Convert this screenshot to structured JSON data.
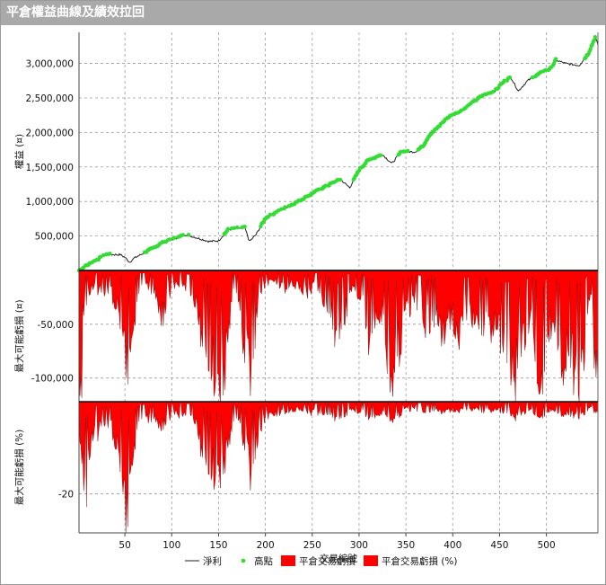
{
  "window": {
    "title": "平倉權益曲線及績效拉回"
  },
  "chart_data": {
    "type": "line",
    "x_label": "交易編號",
    "x_ticks": [
      50,
      100,
      150,
      200,
      250,
      300,
      350,
      400,
      450,
      500
    ],
    "x_range": [
      1,
      555
    ],
    "panels": [
      {
        "name": "equity",
        "ylabel": "權益 (¤)",
        "ylim": [
          0,
          3450000
        ],
        "y_ticks": [
          {
            "v": 500000,
            "label": "500,000"
          },
          {
            "v": 1000000,
            "label": "1,000,000"
          },
          {
            "v": 1500000,
            "label": "1,500,000"
          },
          {
            "v": 2000000,
            "label": "2,000,000"
          },
          {
            "v": 2500000,
            "label": "2,500,000"
          },
          {
            "v": 3000000,
            "label": "3,000,000"
          }
        ],
        "equity_anchors": [
          [
            1,
            0
          ],
          [
            10,
            80000
          ],
          [
            30,
            230000
          ],
          [
            45,
            230000
          ],
          [
            50,
            190000
          ],
          [
            55,
            120000
          ],
          [
            60,
            180000
          ],
          [
            70,
            250000
          ],
          [
            90,
            400000
          ],
          [
            115,
            520000
          ],
          [
            125,
            480000
          ],
          [
            140,
            420000
          ],
          [
            150,
            430000
          ],
          [
            160,
            590000
          ],
          [
            170,
            610000
          ],
          [
            178,
            620000
          ],
          [
            183,
            420000
          ],
          [
            190,
            520000
          ],
          [
            200,
            760000
          ],
          [
            220,
            900000
          ],
          [
            235,
            1000000
          ],
          [
            260,
            1190000
          ],
          [
            280,
            1320000
          ],
          [
            290,
            1200000
          ],
          [
            300,
            1460000
          ],
          [
            310,
            1600000
          ],
          [
            325,
            1680000
          ],
          [
            335,
            1550000
          ],
          [
            345,
            1720000
          ],
          [
            360,
            1720000
          ],
          [
            368,
            1800000
          ],
          [
            375,
            1960000
          ],
          [
            380,
            2020000
          ],
          [
            395,
            2220000
          ],
          [
            410,
            2320000
          ],
          [
            430,
            2520000
          ],
          [
            445,
            2600000
          ],
          [
            455,
            2740000
          ],
          [
            462,
            2800000
          ],
          [
            470,
            2600000
          ],
          [
            480,
            2750000
          ],
          [
            495,
            2870000
          ],
          [
            505,
            2930000
          ],
          [
            510,
            3050000
          ],
          [
            520,
            3000000
          ],
          [
            535,
            2970000
          ],
          [
            545,
            3150000
          ],
          [
            552,
            3380000
          ],
          [
            555,
            3270000
          ]
        ],
        "series": [
          {
            "name": "淨利",
            "color": "#222222"
          },
          {
            "name": "高點",
            "color": "#33dd33"
          }
        ]
      },
      {
        "name": "drawdown",
        "ylabel": "最大可能虧損 (¤)",
        "ylim": [
          -122000,
          0
        ],
        "y_ticks": [
          {
            "v": -50000,
            "label": "-50,000"
          },
          {
            "v": -100000,
            "label": "-100,000"
          }
        ],
        "series_name": "平倉交易虧損",
        "color": "#ff0000",
        "spikes": [
          [
            5,
            -40
          ],
          [
            12,
            -22
          ],
          [
            20,
            -20
          ],
          [
            28,
            -25
          ],
          [
            33,
            -18
          ],
          [
            40,
            -35
          ],
          [
            45,
            -50
          ],
          [
            48,
            -62
          ],
          [
            50,
            -85
          ],
          [
            52,
            -100
          ],
          [
            54,
            -110
          ],
          [
            56,
            -90
          ],
          [
            58,
            -60
          ],
          [
            62,
            -40
          ],
          [
            68,
            -20
          ],
          [
            75,
            -18
          ],
          [
            82,
            -25
          ],
          [
            90,
            -50
          ],
          [
            95,
            -35
          ],
          [
            100,
            -20
          ],
          [
            110,
            -15
          ],
          [
            118,
            -25
          ],
          [
            125,
            -35
          ],
          [
            130,
            -60
          ],
          [
            135,
            -75
          ],
          [
            140,
            -95
          ],
          [
            145,
            -110
          ],
          [
            150,
            -122
          ],
          [
            155,
            -118
          ],
          [
            160,
            -80
          ],
          [
            165,
            -20
          ],
          [
            172,
            -40
          ],
          [
            180,
            -95
          ],
          [
            185,
            -110
          ],
          [
            188,
            -100
          ],
          [
            192,
            -25
          ],
          [
            200,
            -15
          ],
          [
            210,
            -10
          ],
          [
            220,
            -20
          ],
          [
            228,
            -12
          ],
          [
            235,
            -18
          ],
          [
            245,
            -25
          ],
          [
            255,
            -15
          ],
          [
            262,
            -30
          ],
          [
            270,
            -45
          ],
          [
            278,
            -88
          ],
          [
            282,
            -55
          ],
          [
            290,
            -30
          ],
          [
            295,
            -15
          ],
          [
            305,
            -40
          ],
          [
            310,
            -80
          ],
          [
            318,
            -45
          ],
          [
            325,
            -50
          ],
          [
            330,
            -85
          ],
          [
            335,
            -115
          ],
          [
            340,
            -90
          ],
          [
            345,
            -70
          ],
          [
            352,
            -40
          ],
          [
            358,
            -35
          ],
          [
            365,
            -30
          ],
          [
            372,
            -60
          ],
          [
            378,
            -48
          ],
          [
            385,
            -55
          ],
          [
            392,
            -70
          ],
          [
            398,
            -45
          ],
          [
            405,
            -65
          ],
          [
            412,
            -62
          ],
          [
            418,
            -40
          ],
          [
            425,
            -72
          ],
          [
            432,
            -55
          ],
          [
            440,
            -60
          ],
          [
            448,
            -68
          ],
          [
            455,
            -75
          ],
          [
            460,
            -110
          ],
          [
            465,
            -120
          ],
          [
            470,
            -100
          ],
          [
            475,
            -65
          ],
          [
            480,
            -70
          ],
          [
            485,
            -50
          ],
          [
            490,
            -92
          ],
          [
            495,
            -115
          ],
          [
            500,
            -70
          ],
          [
            508,
            -55
          ],
          [
            515,
            -85
          ],
          [
            520,
            -100
          ],
          [
            525,
            -80
          ],
          [
            530,
            -108
          ],
          [
            535,
            -115
          ],
          [
            540,
            -95
          ],
          [
            543,
            -45
          ],
          [
            548,
            -20
          ],
          [
            552,
            -110
          ],
          [
            555,
            -105
          ]
        ]
      },
      {
        "name": "drawdown_pct",
        "ylabel": "最大可能虧損 (%)",
        "ylim": [
          -28.5,
          0
        ],
        "y_ticks": [
          {
            "v": -20,
            "label": "-20"
          }
        ],
        "series_name": "平倉交易虧損 (%)",
        "color": "#ff0000",
        "spikes": [
          [
            2,
            -8
          ],
          [
            5,
            -14
          ],
          [
            8,
            -24
          ],
          [
            12,
            -12
          ],
          [
            18,
            -9
          ],
          [
            25,
            -6
          ],
          [
            33,
            -5
          ],
          [
            38,
            -8
          ],
          [
            42,
            -12
          ],
          [
            45,
            -14
          ],
          [
            48,
            -20
          ],
          [
            50,
            -25
          ],
          [
            52,
            -28
          ],
          [
            54,
            -26
          ],
          [
            56,
            -18
          ],
          [
            60,
            -10
          ],
          [
            65,
            -6
          ],
          [
            72,
            -5
          ],
          [
            80,
            -4
          ],
          [
            88,
            -6
          ],
          [
            95,
            -5
          ],
          [
            102,
            -3
          ],
          [
            110,
            -4
          ],
          [
            118,
            -3
          ],
          [
            125,
            -5
          ],
          [
            130,
            -10
          ],
          [
            135,
            -13
          ],
          [
            140,
            -16
          ],
          [
            145,
            -18
          ],
          [
            150,
            -17
          ],
          [
            155,
            -16
          ],
          [
            160,
            -12
          ],
          [
            165,
            -6
          ],
          [
            172,
            -5
          ],
          [
            178,
            -10
          ],
          [
            182,
            -15
          ],
          [
            185,
            -19
          ],
          [
            188,
            -16
          ],
          [
            192,
            -8
          ],
          [
            200,
            -4
          ],
          [
            210,
            -3
          ],
          [
            220,
            -2.5
          ],
          [
            230,
            -2
          ],
          [
            240,
            -2
          ],
          [
            250,
            -3
          ],
          [
            260,
            -2.5
          ],
          [
            270,
            -3
          ],
          [
            278,
            -5
          ],
          [
            285,
            -3
          ],
          [
            295,
            -2
          ],
          [
            305,
            -3
          ],
          [
            310,
            -4
          ],
          [
            320,
            -3
          ],
          [
            330,
            -3
          ],
          [
            335,
            -4.5
          ],
          [
            340,
            -3.5
          ],
          [
            350,
            -2
          ],
          [
            360,
            -1.8
          ],
          [
            370,
            -2.2
          ],
          [
            380,
            -2
          ],
          [
            390,
            -2.5
          ],
          [
            400,
            -2
          ],
          [
            410,
            -2.2
          ],
          [
            420,
            -2
          ],
          [
            430,
            -2.3
          ],
          [
            440,
            -2.2
          ],
          [
            450,
            -2.2
          ],
          [
            460,
            -3
          ],
          [
            465,
            -4
          ],
          [
            470,
            -3.3
          ],
          [
            480,
            -2.2
          ],
          [
            490,
            -2.8
          ],
          [
            495,
            -3.5
          ],
          [
            505,
            -2
          ],
          [
            515,
            -2.8
          ],
          [
            520,
            -3
          ],
          [
            530,
            -3.2
          ],
          [
            535,
            -3.6
          ],
          [
            540,
            -3
          ],
          [
            548,
            -1
          ],
          [
            552,
            -2.8
          ],
          [
            555,
            -2.5
          ]
        ]
      }
    ]
  },
  "legend": [
    {
      "label": "淨利",
      "kind": "line",
      "color": "#222222"
    },
    {
      "label": "高點",
      "kind": "dot",
      "color": "#33dd33"
    },
    {
      "label": "平倉交易虧損",
      "kind": "box",
      "color": "#ff0000"
    },
    {
      "label": "平倉交易虧損 (%)",
      "kind": "box",
      "color": "#ff0000"
    }
  ]
}
